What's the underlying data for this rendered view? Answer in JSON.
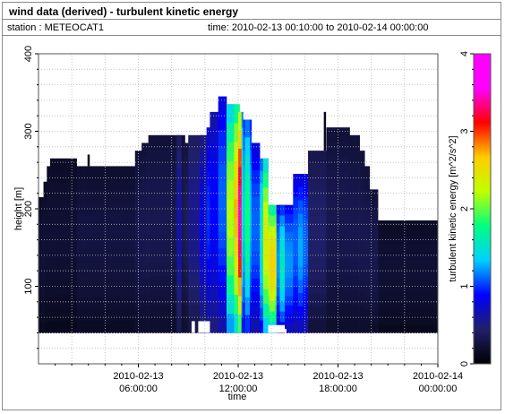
{
  "header": {
    "title": "wind data (derived) - turbulent kinetic energy",
    "station": "station : METEOCAT1",
    "time_range": "time: 2010-02-13 00:10:00 to 2010-02-14 00:00:00"
  },
  "chart_data": {
    "type": "heatmap",
    "title": "wind data (derived) - turbulent kinetic energy",
    "xlabel": "time",
    "ylabel": "height [m]",
    "colorbar_label": "turbulent kinetic energy [m^2/s^2]",
    "x_hours_range": [
      0,
      24
    ],
    "ylim": [
      0,
      400
    ],
    "clim": [
      0,
      4
    ],
    "x_ticks": [
      {
        "hour": 6,
        "line1": "2010-02-13",
        "line2": "06:00:00"
      },
      {
        "hour": 12,
        "line1": "2010-02-13",
        "line2": "12:00:00"
      },
      {
        "hour": 18,
        "line1": "2010-02-13",
        "line2": "18:00:00"
      },
      {
        "hour": 24,
        "line1": "2010-02-14",
        "line2": "00:00:00"
      }
    ],
    "y_ticks": [
      100,
      200,
      300,
      400
    ],
    "colorbar_ticks": [
      0,
      1,
      2,
      3,
      4
    ],
    "grid": true,
    "columns": [
      {
        "t0": 0.0,
        "t1": 0.3,
        "top": 215,
        "bottom": 40,
        "tke": 0.2
      },
      {
        "t0": 0.3,
        "t1": 0.5,
        "top": 235,
        "bottom": 40,
        "tke": 0.2
      },
      {
        "t0": 0.5,
        "t1": 0.7,
        "top": 255,
        "bottom": 40,
        "tke": 0.2
      },
      {
        "t0": 0.7,
        "t1": 2.3,
        "top": 265,
        "bottom": 40,
        "tke": 0.2
      },
      {
        "t0": 2.3,
        "t1": 2.7,
        "top": 255,
        "bottom": 40,
        "tke": 0.25
      },
      {
        "t0": 2.7,
        "t1": 5.8,
        "top": 255,
        "bottom": 40,
        "tke": 0.25
      },
      {
        "t0": 5.8,
        "t1": 6.2,
        "top": 275,
        "bottom": 40,
        "tke": 0.3
      },
      {
        "t0": 6.2,
        "t1": 6.6,
        "top": 285,
        "bottom": 40,
        "tke": 0.3
      },
      {
        "t0": 6.6,
        "t1": 8.8,
        "top": 295,
        "bottom": 40,
        "tke": 0.3
      },
      {
        "t0": 8.8,
        "t1": 9.0,
        "top": 285,
        "bottom": 40,
        "tke": 0.35
      },
      {
        "t0": 9.0,
        "t1": 10.1,
        "top": 295,
        "bottom": 40,
        "tke": 0.5
      },
      {
        "t0": 10.1,
        "t1": 10.3,
        "top": 305,
        "bottom": 40,
        "tke": 0.9
      },
      {
        "t0": 10.3,
        "t1": 10.8,
        "top": 325,
        "bottom": 40,
        "tke": 0.8
      },
      {
        "t0": 10.8,
        "t1": 11.3,
        "top": 345,
        "bottom": 40,
        "tke": 1.0
      },
      {
        "t0": 11.3,
        "t1": 11.8,
        "top": 335,
        "bottom": 40,
        "tke": 1.9
      },
      {
        "t0": 11.8,
        "t1": 12.3,
        "top": 325,
        "bottom": 40,
        "tke": 1.5
      },
      {
        "t0": 12.3,
        "t1": 12.8,
        "top": 315,
        "bottom": 40,
        "tke": 1.2
      },
      {
        "t0": 12.8,
        "t1": 13.3,
        "top": 285,
        "bottom": 40,
        "tke": 1.0
      },
      {
        "t0": 13.3,
        "t1": 13.8,
        "top": 265,
        "bottom": 40,
        "tke": 1.4
      },
      {
        "t0": 13.8,
        "t1": 14.3,
        "top": 205,
        "bottom": 40,
        "tke": 2.2
      },
      {
        "t0": 14.3,
        "t1": 15.3,
        "top": 205,
        "bottom": 40,
        "tke": 1.1
      },
      {
        "t0": 15.3,
        "t1": 16.2,
        "top": 245,
        "bottom": 40,
        "tke": 1.0
      },
      {
        "t0": 16.2,
        "t1": 17.3,
        "top": 275,
        "bottom": 40,
        "tke": 0.4
      },
      {
        "t0": 17.3,
        "t1": 18.7,
        "top": 305,
        "bottom": 40,
        "tke": 0.3
      },
      {
        "t0": 18.7,
        "t1": 19.3,
        "top": 295,
        "bottom": 40,
        "tke": 0.3
      },
      {
        "t0": 19.3,
        "t1": 19.6,
        "top": 275,
        "bottom": 40,
        "tke": 0.3
      },
      {
        "t0": 19.6,
        "t1": 19.9,
        "top": 255,
        "bottom": 40,
        "tke": 0.3
      },
      {
        "t0": 19.9,
        "t1": 20.4,
        "top": 225,
        "bottom": 40,
        "tke": 0.3
      },
      {
        "t0": 20.4,
        "t1": 24.0,
        "top": 185,
        "bottom": 40,
        "tke": 0.2
      }
    ],
    "streaks": [
      {
        "t0": 8.3,
        "t1": 8.6,
        "tke": 0.6
      },
      {
        "t0": 9.7,
        "t1": 10.0,
        "tke": 0.8
      },
      {
        "t0": 11.35,
        "t1": 11.7,
        "tke": 2.1
      },
      {
        "t0": 11.75,
        "t1": 12.1,
        "tke": 2.6
      },
      {
        "t0": 12.0,
        "t1": 12.2,
        "tke": 3.3
      },
      {
        "t0": 12.4,
        "t1": 12.7,
        "tke": 1.7
      },
      {
        "t0": 13.5,
        "t1": 13.8,
        "tke": 2.3
      },
      {
        "t0": 13.9,
        "t1": 14.2,
        "tke": 2.5
      },
      {
        "t0": 14.5,
        "t1": 14.8,
        "tke": 1.5
      },
      {
        "t0": 15.6,
        "t1": 15.9,
        "tke": 1.2
      }
    ],
    "spikes": [
      {
        "t": 3.0,
        "top": 270,
        "bottom": 255
      },
      {
        "t": 17.2,
        "top": 325,
        "bottom": 275
      }
    ],
    "gaps": [
      {
        "t0": 9.2,
        "t1": 9.4,
        "top": 55,
        "bottom": 40
      },
      {
        "t0": 9.6,
        "t1": 10.3,
        "top": 55,
        "bottom": 40
      },
      {
        "t0": 13.8,
        "t1": 14.8,
        "top": 50,
        "bottom": 40
      },
      {
        "t0": 14.8,
        "t1": 14.9,
        "top": 45,
        "bottom": 35
      }
    ],
    "colormap": [
      "#000000",
      "#20206a",
      "#0000ff",
      "#00d0ff",
      "#00ff80",
      "#c0ff00",
      "#ffcc00",
      "#ff0000",
      "#ff00ff",
      "#ff00ff"
    ]
  }
}
